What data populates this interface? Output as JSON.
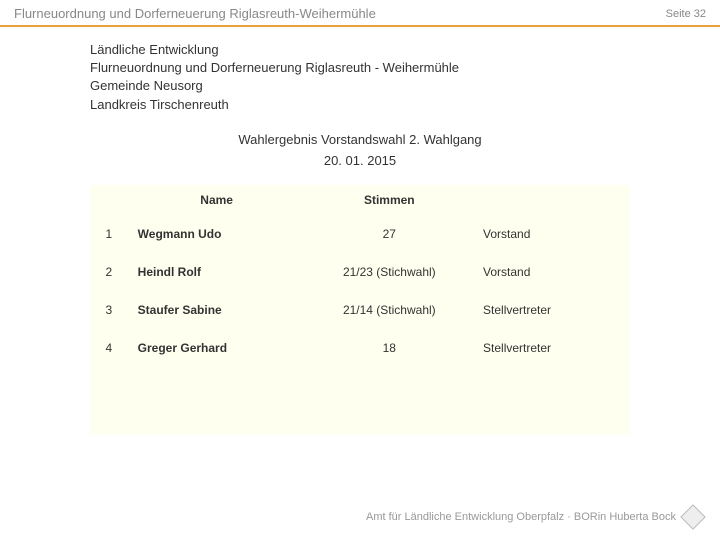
{
  "header": {
    "title": "Flurneuordnung und Dorferneuerung Riglasreuth-Weihermühle",
    "page": "Seite 32"
  },
  "subheader": {
    "line1": "Ländliche Entwicklung",
    "line2": "Flurneuordnung und Dorferneuerung Riglasreuth - Weihermühle",
    "line3": "Gemeinde Neusorg",
    "line4": "Landkreis Tirschenreuth"
  },
  "section": {
    "title": "Wahlergebnis Vorstandswahl 2. Wahlgang",
    "date": "20. 01. 2015"
  },
  "table": {
    "columns": {
      "rank": "",
      "name": "Name",
      "votes": "Stimmen",
      "role": ""
    },
    "rows": [
      {
        "rank": "1",
        "name": "Wegmann Udo",
        "votes": "27",
        "role": "Vorstand"
      },
      {
        "rank": "2",
        "name": "Heindl Rolf",
        "votes": "21/23 (Stichwahl)",
        "role": "Vorstand"
      },
      {
        "rank": "3",
        "name": "Staufer Sabine",
        "votes": "21/14 (Stichwahl)",
        "role": "Stellvertreter"
      },
      {
        "rank": "4",
        "name": "Greger Gerhard",
        "votes": "18",
        "role": "Stellvertreter"
      }
    ],
    "col_widths": [
      "36px",
      "170px",
      "160px",
      "150px"
    ],
    "background_color": "#fffff0",
    "border_color_header": "#e8a33d"
  },
  "footer": {
    "text": "Amt für Ländliche Entwicklung Oberpfalz · BORin Huberta Bock"
  },
  "colors": {
    "accent": "#e8a33d",
    "muted_text": "#888888",
    "text": "#333333",
    "footer_text": "#999999"
  }
}
